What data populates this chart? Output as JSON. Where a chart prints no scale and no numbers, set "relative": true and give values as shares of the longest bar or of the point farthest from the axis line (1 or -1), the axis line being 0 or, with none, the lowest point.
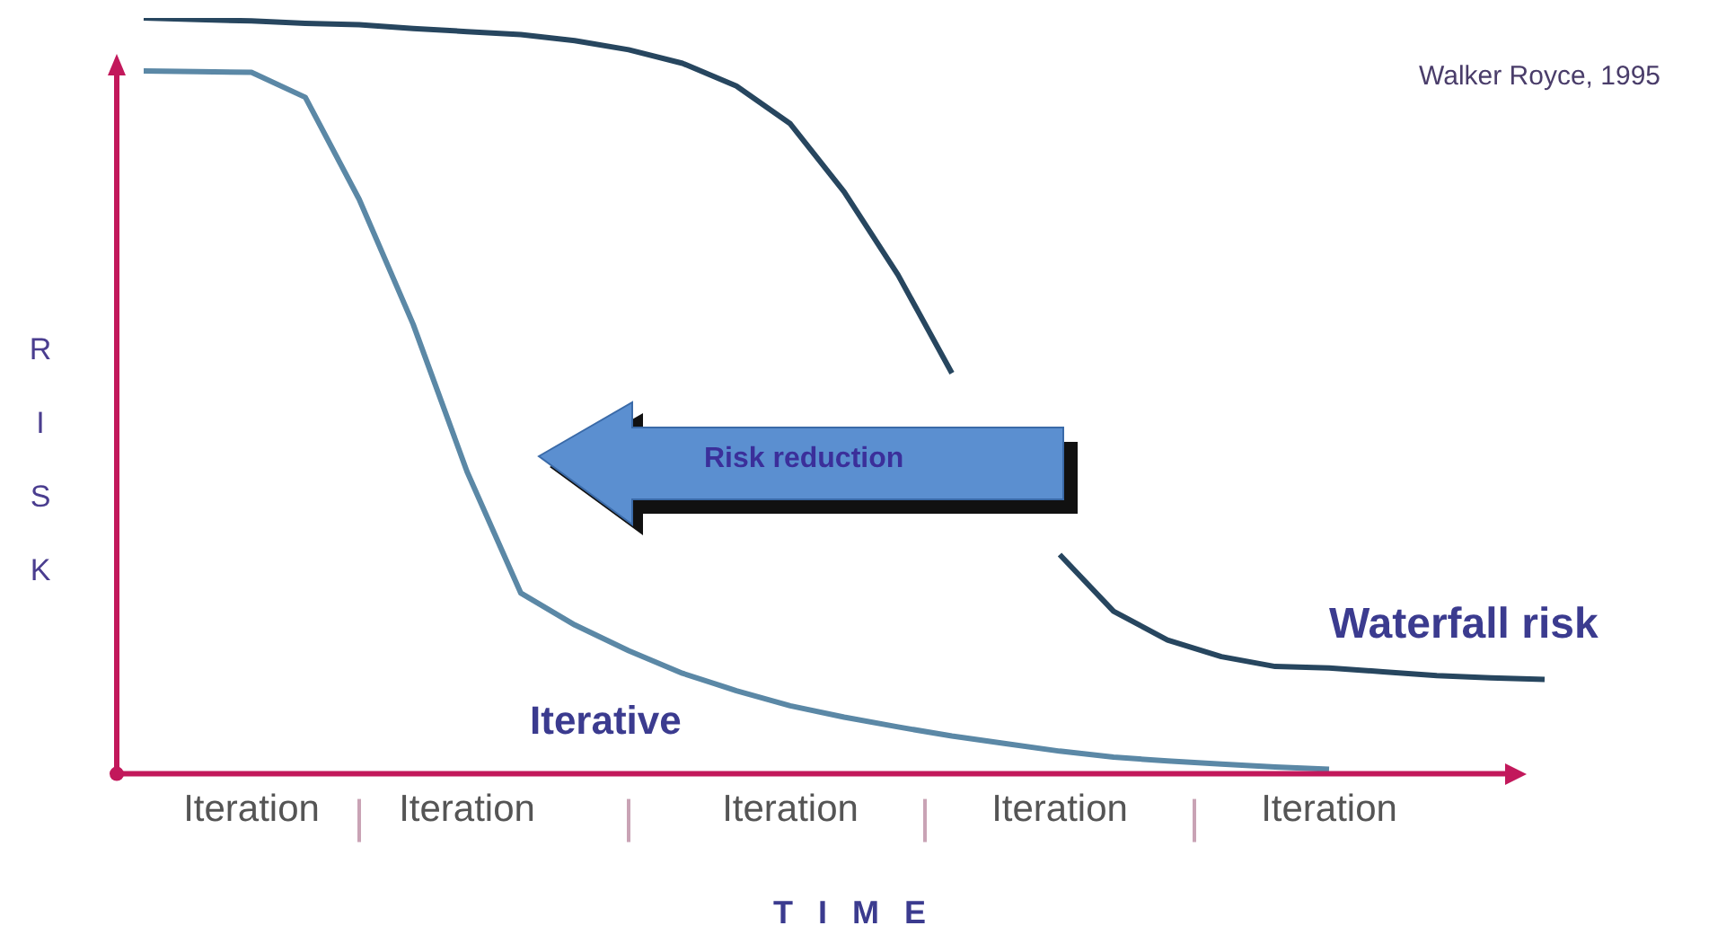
{
  "chart_data": {
    "type": "line",
    "relative": true,
    "xlabel": "TIME",
    "ylabel": "RISK",
    "categories": [
      null,
      null,
      "Iteration",
      null,
      null,
      null,
      "Iteration",
      null,
      null,
      null,
      null,
      null,
      "Iteration",
      null,
      null,
      null,
      null,
      "Iteration",
      null,
      null,
      null,
      null,
      "Iteration",
      null,
      null,
      null,
      null
    ],
    "legend": false,
    "marker": "none",
    "line_style": "solid",
    "grid": false,
    "annotations": [
      "Walker Royce, 1995",
      "Risk reduction"
    ],
    "series": [
      {
        "name": "Waterfall risk",
        "color": "#27465f",
        "values": [
          1.0,
          0.998,
          0.996,
          0.993,
          0.991,
          0.986,
          0.982,
          0.978,
          0.97,
          0.958,
          0.94,
          0.91,
          0.86,
          0.77,
          0.66,
          0.53,
          null,
          0.29,
          0.215,
          0.177,
          0.155,
          0.142,
          0.14,
          0.135,
          0.13,
          0.127,
          0.125
        ]
      },
      {
        "name": "Iterative",
        "color": "#5b88a6",
        "values": [
          0.93,
          0.929,
          0.928,
          0.895,
          0.76,
          0.595,
          0.4,
          0.239,
          0.197,
          0.163,
          0.133,
          0.11,
          0.09,
          0.075,
          0.062,
          0.05,
          0.04,
          0.03,
          0.022,
          0.017,
          0.013,
          0.009,
          0.006,
          null,
          null,
          null,
          null
        ]
      }
    ]
  }
}
